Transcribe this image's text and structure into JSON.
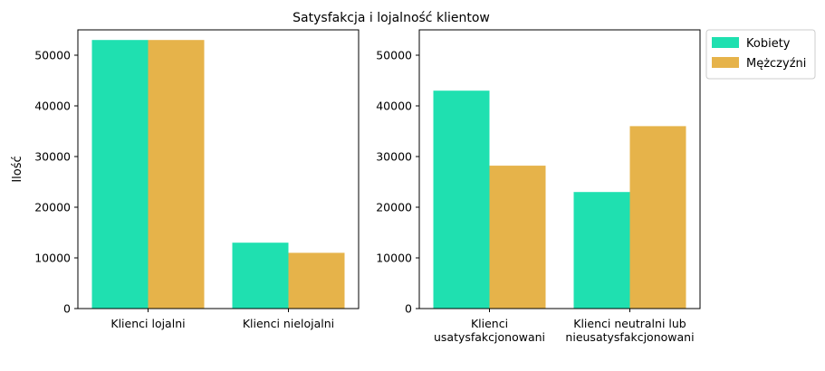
{
  "title": "Satysfakcja i lojalność klientow",
  "legend": {
    "placement": "outside-top-right",
    "entries": [
      {
        "label": "Kobiety",
        "color": "#1fe0b0"
      },
      {
        "label": "Mężczyźni",
        "color": "#e6b34a"
      }
    ]
  },
  "chart_data": [
    {
      "type": "bar",
      "title": "",
      "xlabel": "",
      "ylabel": "Ilość",
      "ylim": [
        0,
        55000
      ],
      "yticks": [
        0,
        10000,
        20000,
        30000,
        40000,
        50000
      ],
      "categories": [
        [
          "Klienci lojalni"
        ],
        [
          "Klienci nielojalni"
        ]
      ],
      "series": [
        {
          "name": "Kobiety",
          "color": "#1fe0b0",
          "values": [
            53000,
            13000
          ]
        },
        {
          "name": "Mężczyźni",
          "color": "#e6b34a",
          "values": [
            53000,
            11000
          ]
        }
      ],
      "grid": false
    },
    {
      "type": "bar",
      "title": "",
      "xlabel": "",
      "ylabel": "",
      "ylim": [
        0,
        55000
      ],
      "yticks": [
        0,
        10000,
        20000,
        30000,
        40000,
        50000
      ],
      "categories": [
        [
          "Klienci",
          "usatysfakcjonowani"
        ],
        [
          "Klienci neutralni lub",
          "nieusatysfakcjonowani"
        ]
      ],
      "series": [
        {
          "name": "Kobiety",
          "color": "#1fe0b0",
          "values": [
            43000,
            23000
          ]
        },
        {
          "name": "Mężczyźni",
          "color": "#e6b34a",
          "values": [
            28200,
            36000
          ]
        }
      ],
      "grid": false
    }
  ]
}
